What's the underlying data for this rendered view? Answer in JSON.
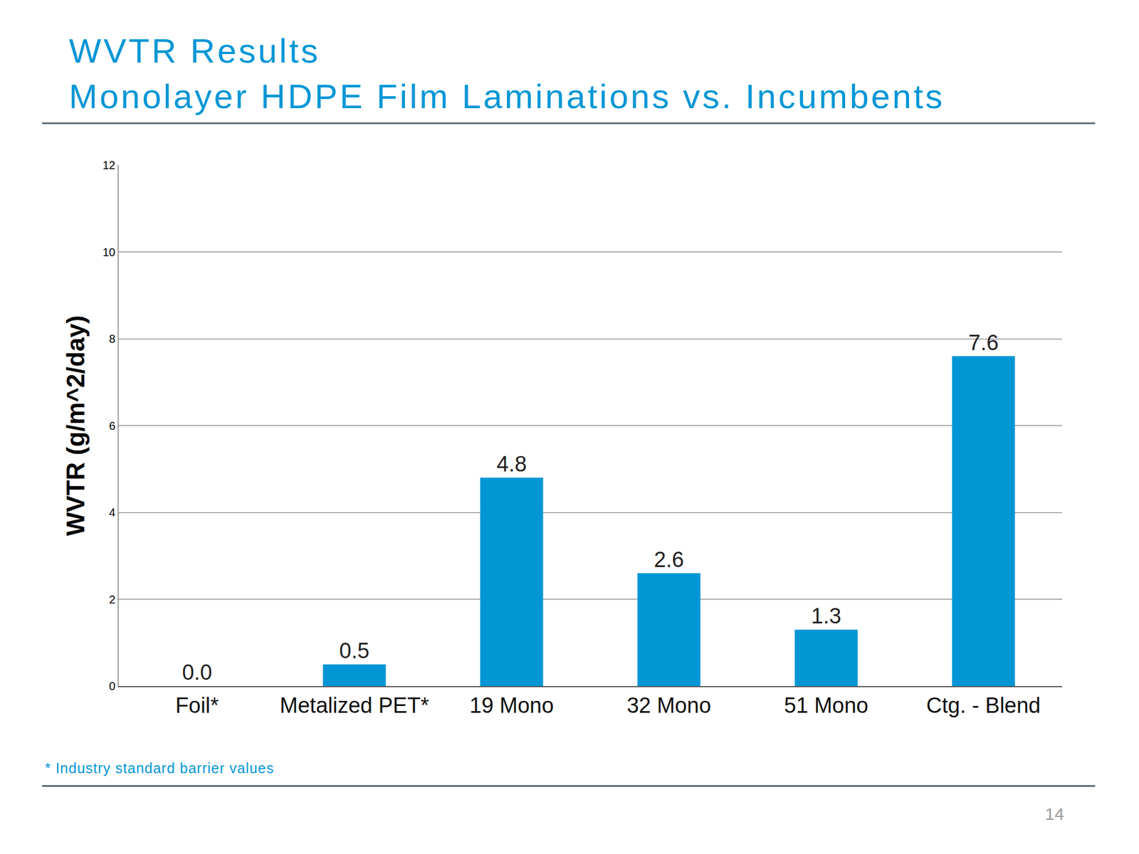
{
  "chart_data": {
    "type": "bar",
    "title": "WVTR Results",
    "subtitle": "Monolayer HDPE Film Laminations vs. Incumbents",
    "y_label": "WVTR (g/m^2/day)",
    "categories": [
      "Foil*",
      "Metalized PET*",
      "19 Mono",
      "32 Mono",
      "51 Mono",
      "Ctg. - Blend"
    ],
    "values": [
      0.0,
      0.5,
      4.8,
      2.6,
      1.3,
      7.6
    ],
    "value_labels": [
      "0.0",
      "0.5",
      "4.8",
      "2.6",
      "1.3",
      "7.6"
    ],
    "color": "#0096d6",
    "ylim": [
      0,
      12
    ],
    "yticks": [
      0,
      2,
      4,
      6,
      8,
      10,
      12
    ],
    "grid": true,
    "data_labels": true,
    "footnote": "* Industry standard barrier values",
    "page_number": 14
  }
}
